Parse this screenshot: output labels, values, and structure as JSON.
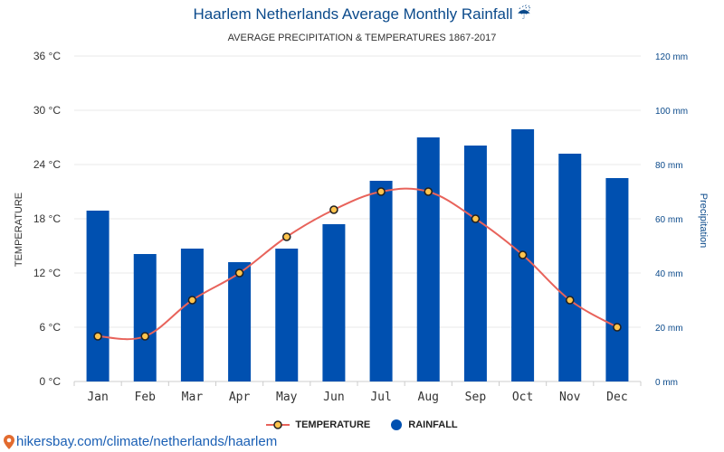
{
  "header": {
    "title": "Haarlem Netherlands Average Monthly Rainfall ☔",
    "subtitle": "AVERAGE PRECIPITATION & TEMPERATURES 1867-2017"
  },
  "footer": {
    "url": "hikersbay.com/climate/netherlands/haarlem"
  },
  "legend": {
    "temperature": "TEMPERATURE",
    "rainfall": "RAINFALL"
  },
  "colors": {
    "bar": "#0050b0",
    "line": "#e8635b",
    "marker_fill": "#ffc44d",
    "title": "#0b4a8b",
    "right_axis": "#0b4a8b"
  },
  "chart_data": {
    "type": "bar",
    "categories": [
      "Jan",
      "Feb",
      "Mar",
      "Apr",
      "May",
      "Jun",
      "Jul",
      "Aug",
      "Sep",
      "Oct",
      "Nov",
      "Dec"
    ],
    "series": [
      {
        "name": "RAINFALL",
        "axis": "right",
        "type": "bar",
        "values": [
          63,
          47,
          49,
          44,
          49,
          58,
          74,
          90,
          87,
          93,
          84,
          75
        ]
      },
      {
        "name": "TEMPERATURE",
        "axis": "left",
        "type": "line",
        "values": [
          5,
          5,
          9,
          12,
          16,
          19,
          21,
          21,
          18,
          14,
          9,
          6
        ]
      }
    ],
    "ylabel": "TEMPERATURE",
    "y2label": "Precipitation",
    "ylim": [
      0,
      36
    ],
    "y2lim": [
      0,
      120
    ],
    "yticks": [
      "0 °C",
      "6 °C",
      "12 °C",
      "18 °C",
      "24 °C",
      "30 °C",
      "36 °C"
    ],
    "y2ticks": [
      "0 mm",
      "20 mm",
      "40 mm",
      "60 mm",
      "80 mm",
      "100 mm",
      "120 mm"
    ],
    "grid": true,
    "legend_position": "bottom"
  }
}
